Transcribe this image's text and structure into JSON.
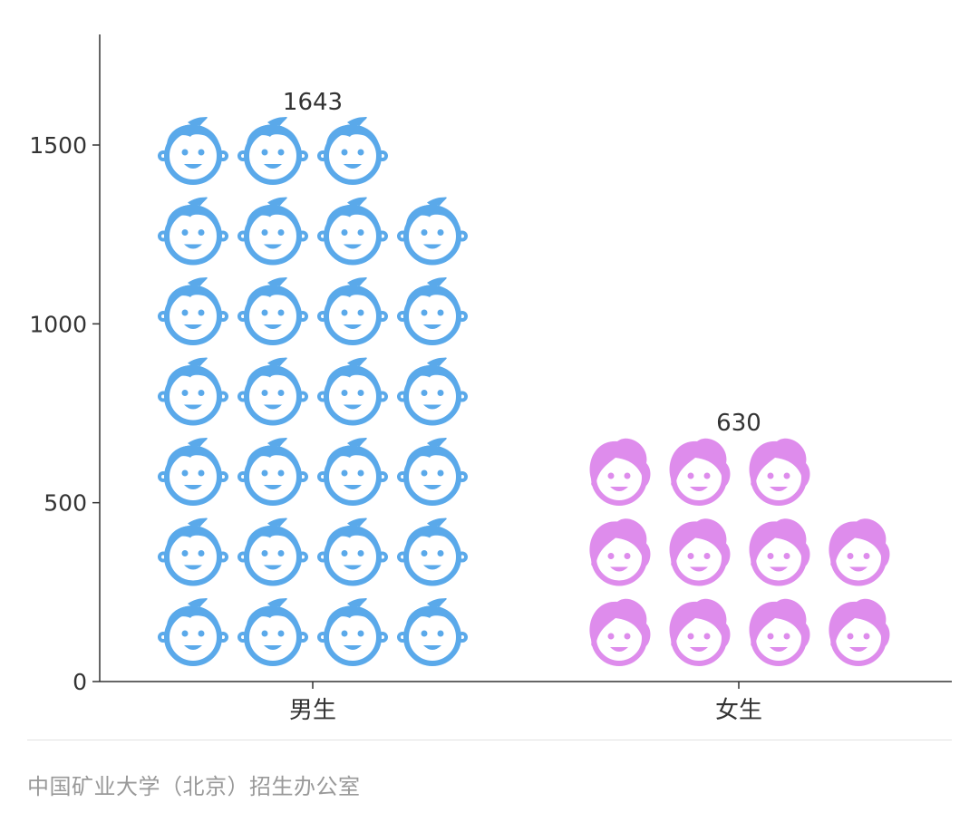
{
  "chart_data": {
    "type": "bar",
    "style": "pictogram",
    "categories": [
      "男生",
      "女生"
    ],
    "values": [
      1643,
      630
    ],
    "data_labels": [
      "1643",
      "630"
    ],
    "ylim": [
      0,
      1800
    ],
    "yticks": [
      0,
      500,
      1000,
      1500
    ],
    "ytick_labels": [
      "0",
      "500",
      "1000",
      "1500"
    ],
    "icons": [
      "boy-face-icon",
      "girl-face-icon"
    ],
    "colors": [
      "#5aa9ea",
      "#de8cec"
    ],
    "grid": false,
    "legend": "none"
  },
  "footer": {
    "source": "中国矿业大学（北京）招生办公室"
  }
}
